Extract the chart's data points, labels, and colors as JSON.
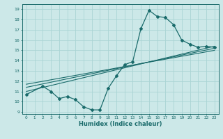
{
  "title": "",
  "xlabel": "Humidex (Indice chaleur)",
  "ylabel": "",
  "bg_color": "#cce8e8",
  "line_color": "#1a6b6b",
  "grid_color": "#aad4d4",
  "xlim": [
    -0.5,
    23.5
  ],
  "ylim": [
    8.8,
    19.5
  ],
  "xticks": [
    0,
    1,
    2,
    3,
    4,
    5,
    6,
    7,
    8,
    9,
    10,
    11,
    12,
    13,
    14,
    15,
    16,
    17,
    18,
    19,
    20,
    21,
    22,
    23
  ],
  "yticks": [
    9,
    10,
    11,
    12,
    13,
    14,
    15,
    16,
    17,
    18,
    19
  ],
  "main_line_x": [
    0,
    2,
    3,
    4,
    5,
    6,
    7,
    8,
    9,
    10,
    11,
    12,
    13,
    14,
    15,
    16,
    17,
    18,
    19,
    20,
    21,
    22,
    23
  ],
  "main_line_y": [
    10.7,
    11.5,
    11.0,
    10.3,
    10.5,
    10.2,
    9.5,
    9.2,
    9.2,
    11.3,
    12.5,
    13.6,
    13.9,
    17.1,
    18.9,
    18.3,
    18.2,
    17.5,
    16.0,
    15.6,
    15.3,
    15.4,
    15.3
  ],
  "reg_line1_x": [
    0,
    23
  ],
  "reg_line1_y": [
    11.0,
    15.4
  ],
  "reg_line2_x": [
    0,
    23
  ],
  "reg_line2_y": [
    11.4,
    15.2
  ],
  "reg_line3_x": [
    0,
    23
  ],
  "reg_line3_y": [
    11.7,
    15.0
  ]
}
